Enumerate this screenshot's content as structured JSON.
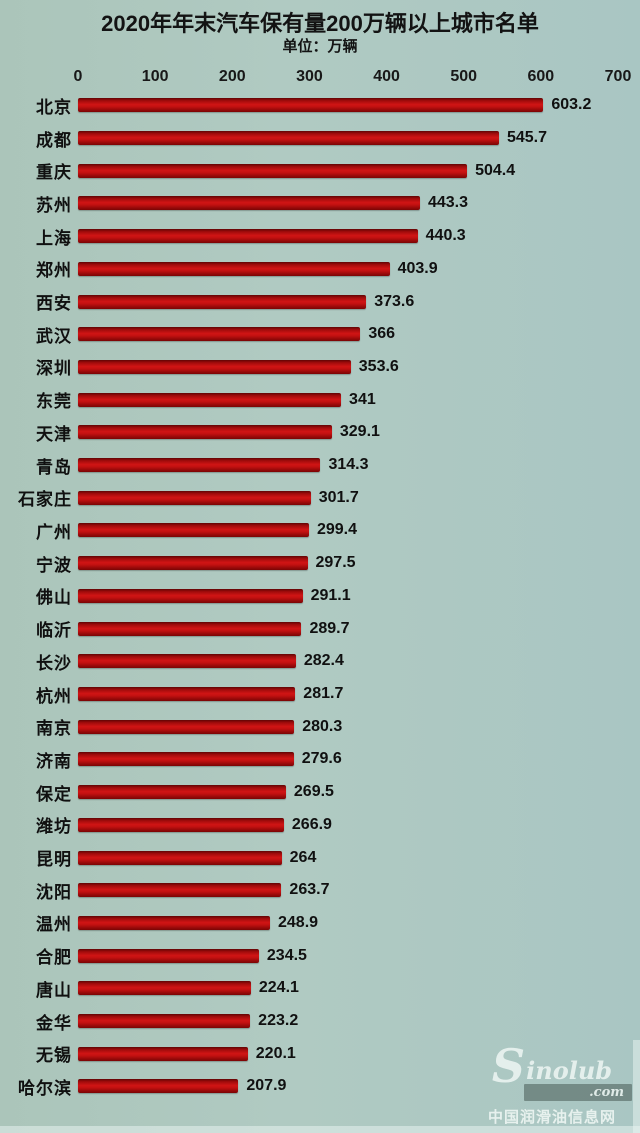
{
  "chart_data": {
    "type": "bar",
    "orientation": "horizontal",
    "title": "2020年年末汽车保有量200万辆以上城市名单",
    "unit_label": "单位：万辆",
    "xlabel": "",
    "ylabel": "",
    "xlim": [
      0,
      700
    ],
    "x_ticks": [
      0,
      100,
      200,
      300,
      400,
      500,
      600,
      700
    ],
    "grid": false,
    "bar_color": "#c31111",
    "background_color": "#aec9c0",
    "text_color": "#131313",
    "categories": [
      "北京",
      "成都",
      "重庆",
      "苏州",
      "上海",
      "郑州",
      "西安",
      "武汉",
      "深圳",
      "东莞",
      "天津",
      "青岛",
      "石家庄",
      "广州",
      "宁波",
      "佛山",
      "临沂",
      "长沙",
      "杭州",
      "南京",
      "济南",
      "保定",
      "潍坊",
      "昆明",
      "沈阳",
      "温州",
      "合肥",
      "唐山",
      "金华",
      "无锡",
      "哈尔滨"
    ],
    "values": [
      603.2,
      545.7,
      504.4,
      443.3,
      440.3,
      403.9,
      373.6,
      366,
      353.6,
      341,
      329.1,
      314.3,
      301.7,
      299.4,
      297.5,
      291.1,
      289.7,
      282.4,
      281.7,
      280.3,
      279.6,
      269.5,
      266.9,
      264,
      263.7,
      248.9,
      234.5,
      224.1,
      223.2,
      220.1,
      207.9
    ]
  },
  "watermark": {
    "logo_s": "S",
    "logo_rest": "inolub",
    "domain": ".com",
    "caption": "中国润滑油信息网"
  }
}
